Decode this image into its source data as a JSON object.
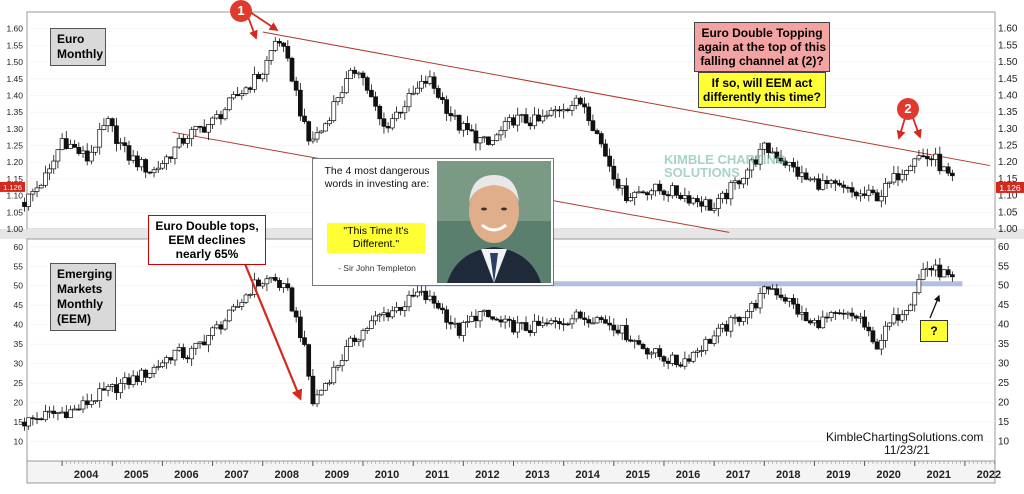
{
  "chart_data": [
    {
      "type": "candlestick",
      "panel_label": "Euro\nMonthly",
      "ylim": [
        1.0,
        1.65
      ],
      "yticks": [
        "1.00",
        "1.05",
        "1.10",
        "1.15",
        "1.20",
        "1.25",
        "1.30",
        "1.35",
        "1.40",
        "1.45",
        "1.50",
        "1.55",
        "1.60"
      ],
      "last_value_label": "1.126",
      "x": [
        2003.25,
        2003.75,
        2004.0,
        2004.5,
        2004.9,
        2005.3,
        2005.8,
        2006.0,
        2006.5,
        2007.0,
        2007.5,
        2008.0,
        2008.3,
        2008.6,
        2008.9,
        2009.2,
        2009.5,
        2009.9,
        2010.4,
        2010.8,
        2011.3,
        2011.9,
        2012.5,
        2013.0,
        2013.5,
        2014.0,
        2014.4,
        2014.9,
        2015.2,
        2015.7,
        2016.2,
        2016.8,
        2017.0,
        2017.5,
        2018.0,
        2018.2,
        2018.8,
        2019.5,
        2019.9,
        2020.3,
        2020.7,
        2021.0,
        2021.4,
        2021.8
      ],
      "y": [
        1.08,
        1.17,
        1.27,
        1.21,
        1.32,
        1.22,
        1.17,
        1.2,
        1.28,
        1.32,
        1.4,
        1.47,
        1.58,
        1.45,
        1.26,
        1.3,
        1.4,
        1.49,
        1.3,
        1.37,
        1.45,
        1.31,
        1.25,
        1.33,
        1.32,
        1.37,
        1.38,
        1.2,
        1.1,
        1.12,
        1.11,
        1.08,
        1.06,
        1.15,
        1.24,
        1.23,
        1.15,
        1.12,
        1.1,
        1.1,
        1.17,
        1.22,
        1.21,
        1.13
      ],
      "channel": {
        "upper": [
          [
            2008.0,
            1.59
          ],
          [
            2022.5,
            1.19
          ]
        ],
        "lower": [
          [
            2006.2,
            1.29
          ],
          [
            2017.3,
            0.99
          ]
        ]
      }
    },
    {
      "type": "candlestick",
      "panel_label": "Emerging\nMarkets\nMonthly\n(EEM)",
      "ylim": [
        5,
        62
      ],
      "yticks": [
        "10",
        "15",
        "20",
        "25",
        "30",
        "35",
        "40",
        "45",
        "50",
        "55",
        "60"
      ],
      "x_tick_labels": [
        "2004",
        "2005",
        "2006",
        "2007",
        "2008",
        "2009",
        "2010",
        "2011",
        "2012",
        "2013",
        "2014",
        "2015",
        "2016",
        "2017",
        "2018",
        "2019",
        "2020",
        "2021",
        "2022"
      ],
      "x": [
        2003.25,
        2003.75,
        2004.25,
        2004.75,
        2005.25,
        2005.75,
        2006.25,
        2006.5,
        2006.9,
        2007.4,
        2007.8,
        2008.2,
        2008.5,
        2008.8,
        2009.0,
        2009.4,
        2009.8,
        2010.3,
        2010.8,
        2011.1,
        2011.5,
        2011.9,
        2012.3,
        2012.8,
        2013.3,
        2013.7,
        2014.2,
        2014.6,
        2015.0,
        2015.5,
        2015.9,
        2016.3,
        2016.8,
        2017.3,
        2017.8,
        2018.1,
        2018.5,
        2018.9,
        2019.4,
        2019.9,
        2020.2,
        2020.5,
        2020.9,
        2021.2,
        2021.6,
        2021.8
      ],
      "y": [
        15,
        17,
        18,
        22,
        25,
        28,
        33,
        32,
        37,
        43,
        50,
        52,
        48,
        36,
        20,
        28,
        36,
        42,
        45,
        48,
        45,
        38,
        43,
        40,
        39,
        40,
        42,
        42,
        40,
        35,
        32,
        30,
        35,
        40,
        45,
        50,
        46,
        40,
        42,
        42,
        34,
        40,
        46,
        55,
        53,
        50
      ],
      "support_level": 50.5,
      "decline_segment": [
        [
          2007.65,
          55.5
        ],
        [
          2008.75,
          21
        ]
      ]
    }
  ],
  "annotations": {
    "badge_1": "1",
    "badge_2": "2",
    "euro_note": "Euro Double Topping again at the top of this falling channel at (2)?",
    "eem_note": "If so, will EEM act differently this time?",
    "decline_note": "Euro Double tops, EEM declines nearly 65%",
    "question": "?",
    "quote_intro": "The 4 most dangerous words in investing are:",
    "quote": "\"This Time It's Different.\"",
    "quote_author": "- Sir John Templeton",
    "watermark_logo": "KIMBLE CHARTING SOLUTIONS",
    "source": "KimbleChartingSolutions.com",
    "date": "11/23/21"
  },
  "colors": {
    "channel": "#b03a2e",
    "arrow": "#d42a1e",
    "support": "#a9b8de",
    "candle_up": "#ffffff",
    "candle_down": "#111111"
  }
}
